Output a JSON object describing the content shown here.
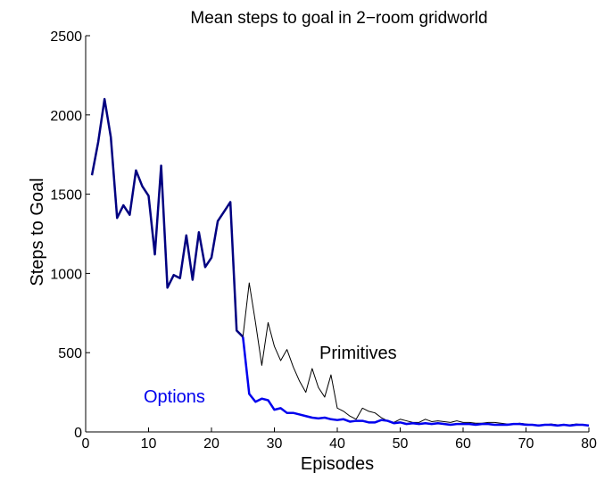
{
  "chart_data": {
    "type": "line",
    "title": "Mean steps to goal in 2−room gridworld",
    "xlabel": "Episodes",
    "ylabel": "Steps to Goal",
    "xlim": [
      0,
      80
    ],
    "ylim": [
      0,
      2500
    ],
    "xticks": [
      0,
      10,
      20,
      30,
      40,
      50,
      60,
      70,
      80
    ],
    "yticks": [
      0,
      500,
      1000,
      1500,
      2000,
      2500
    ],
    "grid": false,
    "colors": {
      "primitives": "#000000",
      "options": "#0000ee",
      "options_early": "#000080"
    },
    "annotations": [
      {
        "text": "Primitives",
        "color": "#000000"
      },
      {
        "text": "Options",
        "color": "#0000ee"
      }
    ],
    "series": [
      {
        "name": "Primitives",
        "x": [
          1,
          2,
          3,
          4,
          5,
          6,
          7,
          8,
          9,
          10,
          11,
          12,
          13,
          14,
          15,
          16,
          17,
          18,
          19,
          20,
          21,
          22,
          23,
          24,
          25,
          26,
          27,
          28,
          29,
          30,
          31,
          32,
          33,
          34,
          35,
          36,
          37,
          38,
          39,
          40,
          41,
          42,
          43,
          44,
          45,
          46,
          47,
          48,
          49,
          50,
          51,
          52,
          53,
          54,
          55,
          56,
          57,
          58,
          59,
          60,
          61,
          62,
          63,
          64,
          65,
          66,
          67,
          68,
          69,
          70,
          71,
          72,
          73,
          74,
          75,
          76,
          77,
          78,
          79,
          80
        ],
        "values": [
          1620,
          1830,
          2100,
          1860,
          1350,
          1430,
          1370,
          1650,
          1550,
          1490,
          1120,
          1680,
          910,
          990,
          970,
          1240,
          960,
          1260,
          1040,
          1100,
          1330,
          1390,
          1450,
          640,
          600,
          940,
          690,
          420,
          690,
          540,
          450,
          520,
          410,
          320,
          250,
          400,
          280,
          220,
          360,
          150,
          130,
          100,
          80,
          150,
          130,
          120,
          90,
          70,
          60,
          80,
          70,
          60,
          60,
          80,
          65,
          70,
          65,
          60,
          70,
          60,
          60,
          55,
          55,
          60,
          60,
          55,
          50,
          50,
          55,
          50,
          45,
          45,
          45,
          50,
          45,
          45,
          45,
          50,
          45,
          40
        ]
      },
      {
        "name": "Options",
        "x": [
          1,
          2,
          3,
          4,
          5,
          6,
          7,
          8,
          9,
          10,
          11,
          12,
          13,
          14,
          15,
          16,
          17,
          18,
          19,
          20,
          21,
          22,
          23,
          24,
          25,
          26,
          27,
          28,
          29,
          30,
          31,
          32,
          33,
          34,
          35,
          36,
          37,
          38,
          39,
          40,
          41,
          42,
          43,
          44,
          45,
          46,
          47,
          48,
          49,
          50,
          51,
          52,
          53,
          54,
          55,
          56,
          57,
          58,
          59,
          60,
          61,
          62,
          63,
          64,
          65,
          66,
          67,
          68,
          69,
          70,
          71,
          72,
          73,
          74,
          75,
          76,
          77,
          78,
          79,
          80
        ],
        "values": [
          1620,
          1830,
          2100,
          1860,
          1350,
          1430,
          1370,
          1650,
          1550,
          1490,
          1120,
          1680,
          910,
          990,
          970,
          1240,
          960,
          1260,
          1040,
          1100,
          1330,
          1390,
          1450,
          640,
          600,
          240,
          190,
          210,
          200,
          140,
          150,
          120,
          120,
          110,
          100,
          90,
          85,
          90,
          80,
          75,
          80,
          65,
          70,
          70,
          60,
          60,
          75,
          70,
          55,
          60,
          50,
          55,
          50,
          55,
          50,
          55,
          50,
          45,
          50,
          50,
          50,
          45,
          50,
          50,
          45,
          45,
          45,
          50,
          50,
          45,
          45,
          40,
          45,
          45,
          40,
          45,
          40,
          45,
          45,
          40
        ]
      }
    ]
  }
}
